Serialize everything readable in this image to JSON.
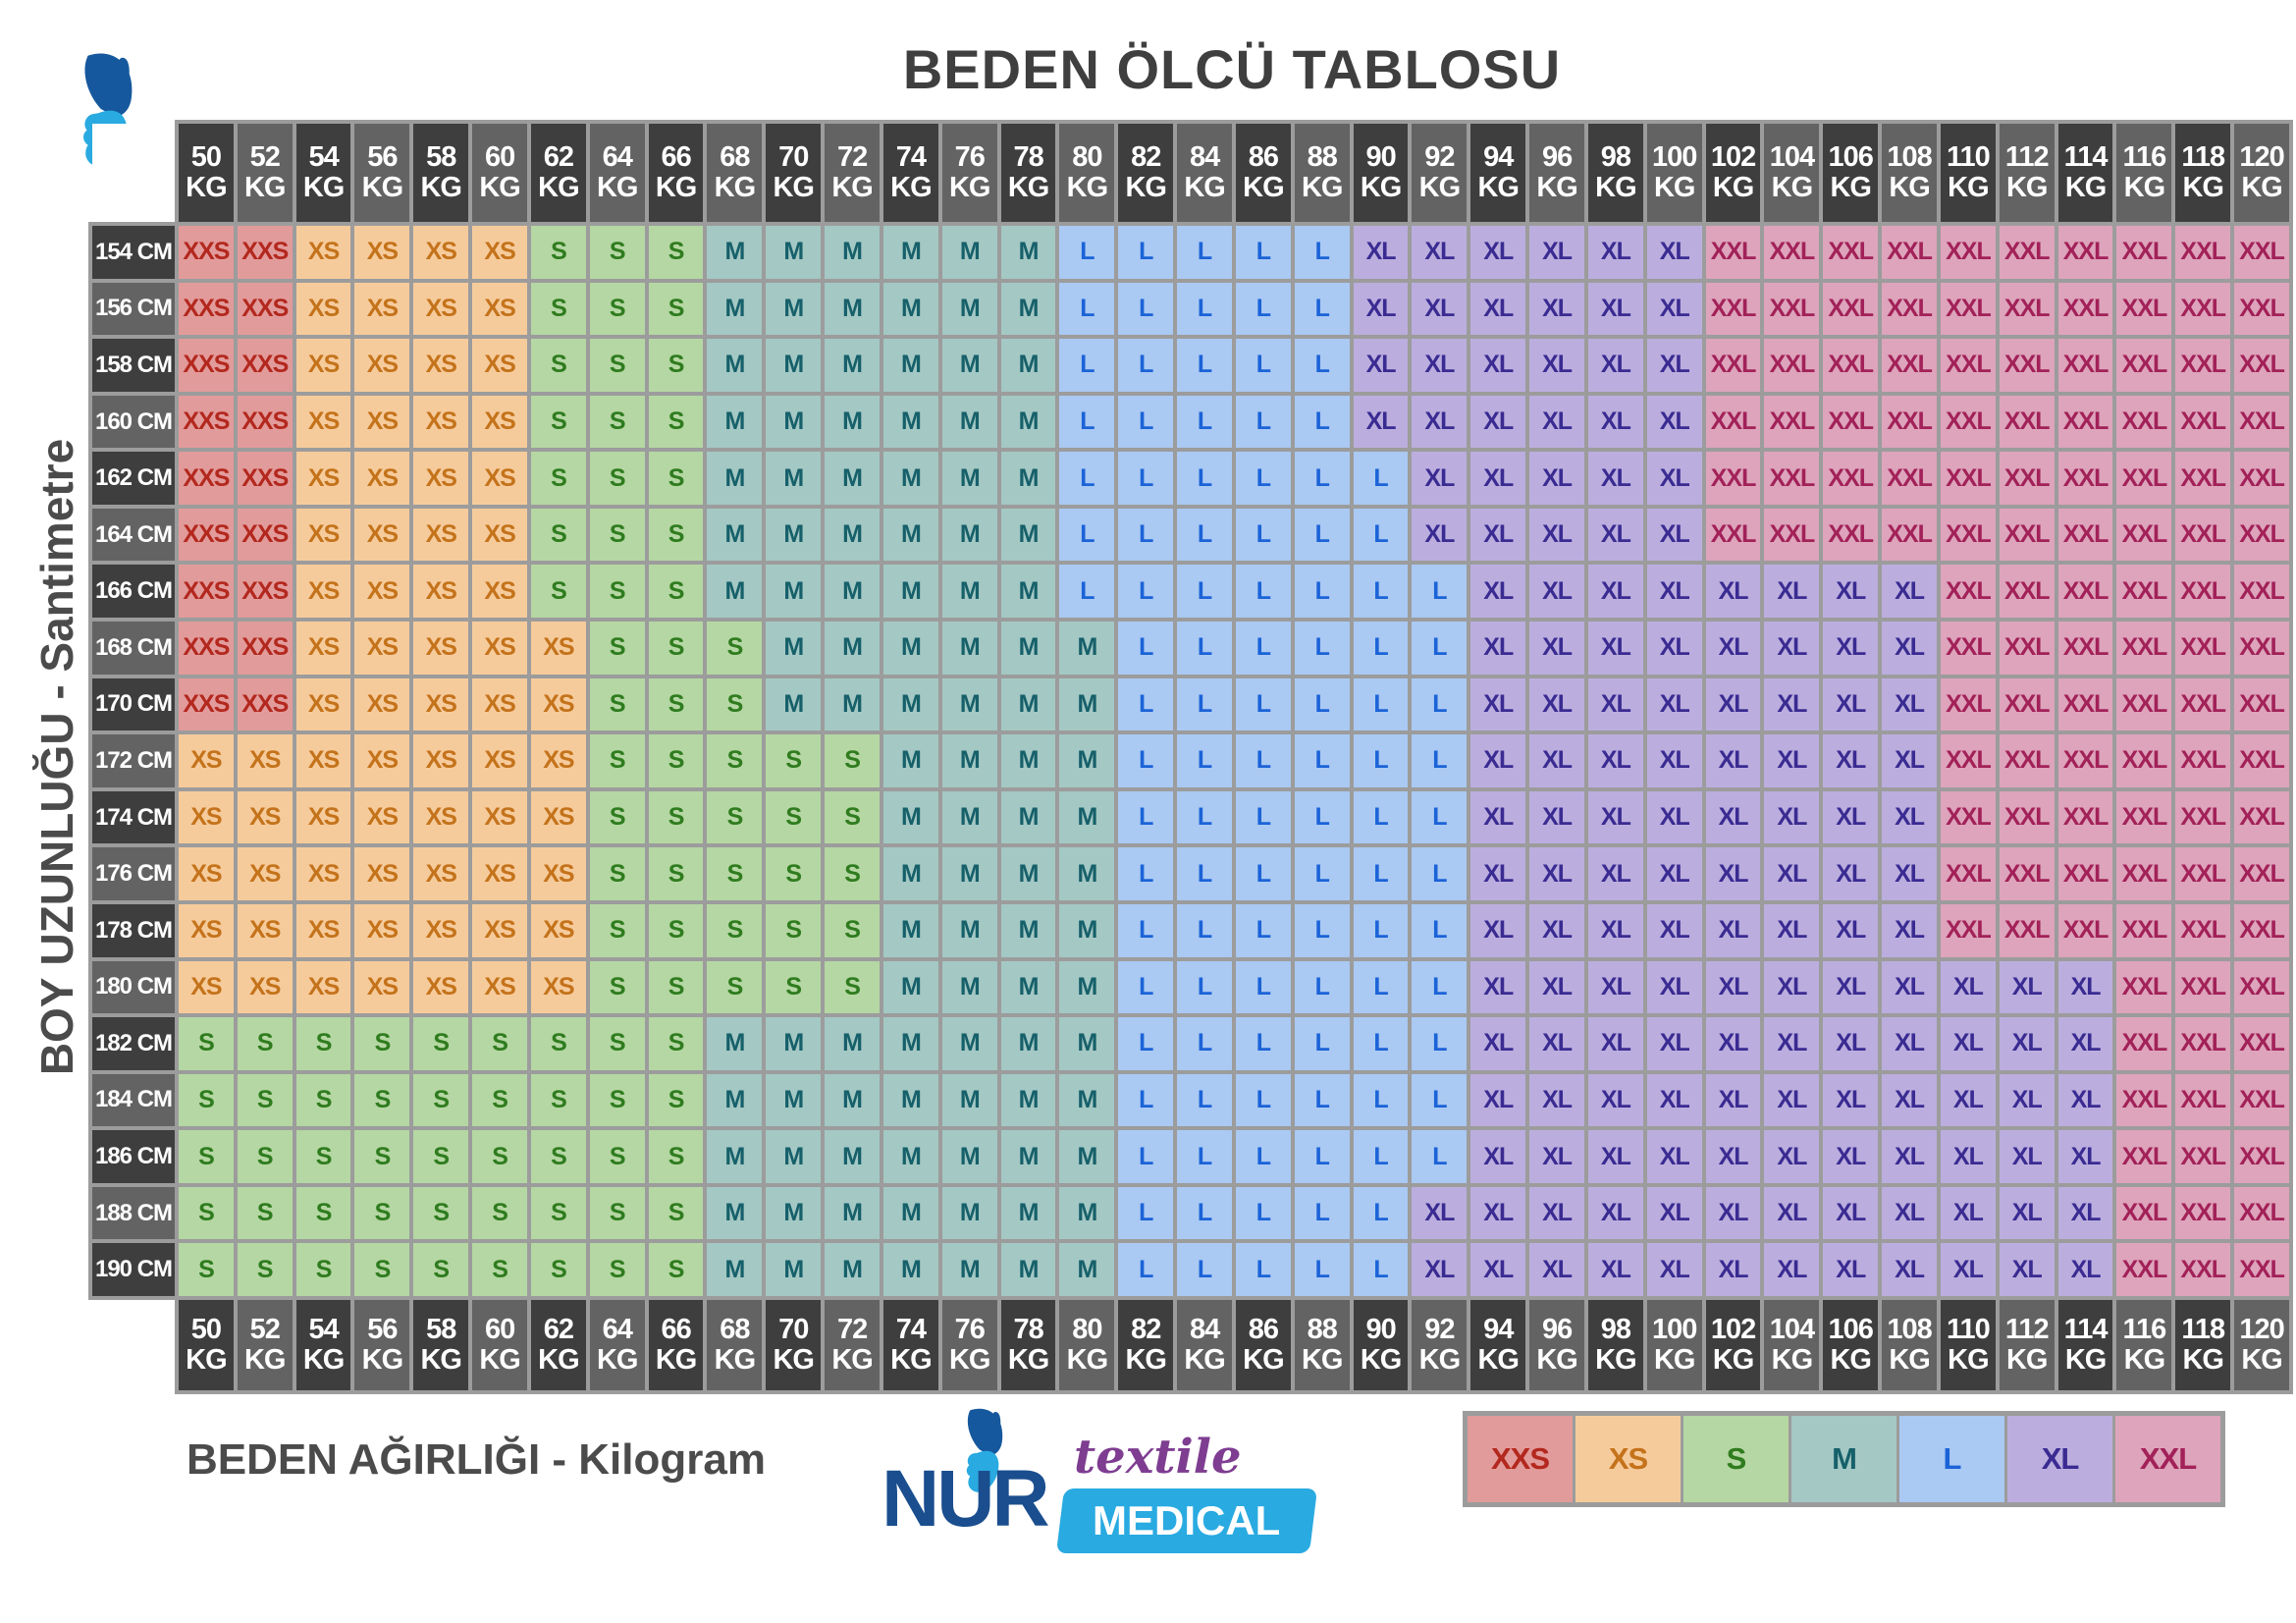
{
  "chart_data": {
    "type": "table",
    "title": "BEDEN ÖLCÜ TABLOSU",
    "x_axis": {
      "label": "BEDEN AĞIRLIĞI - Kilogram",
      "unit": "KG",
      "values": [
        "50",
        "52",
        "54",
        "56",
        "58",
        "60",
        "62",
        "64",
        "66",
        "68",
        "70",
        "72",
        "74",
        "76",
        "78",
        "80",
        "82",
        "84",
        "86",
        "88",
        "90",
        "92",
        "94",
        "96",
        "98",
        "100",
        "102",
        "104",
        "106",
        "108",
        "110",
        "112",
        "114",
        "116",
        "118",
        "120"
      ]
    },
    "y_axis": {
      "label": "BOY UZUNLUĞU - Santimetre",
      "unit": "CM",
      "values": [
        "154",
        "156",
        "158",
        "160",
        "162",
        "164",
        "166",
        "168",
        "170",
        "172",
        "174",
        "176",
        "178",
        "180",
        "182",
        "184",
        "186",
        "188",
        "190"
      ]
    },
    "legend": [
      "XXS",
      "XS",
      "S",
      "M",
      "L",
      "XL",
      "XXL"
    ],
    "rows": [
      {
        "height": "154",
        "runs": [
          [
            "XXS",
            2
          ],
          [
            "XS",
            4
          ],
          [
            "S",
            3
          ],
          [
            "M",
            6
          ],
          [
            "L",
            5
          ],
          [
            "XL",
            6
          ],
          [
            "XXL",
            10
          ]
        ]
      },
      {
        "height": "156",
        "runs": [
          [
            "XXS",
            2
          ],
          [
            "XS",
            4
          ],
          [
            "S",
            3
          ],
          [
            "M",
            6
          ],
          [
            "L",
            5
          ],
          [
            "XL",
            6
          ],
          [
            "XXL",
            10
          ]
        ]
      },
      {
        "height": "158",
        "runs": [
          [
            "XXS",
            2
          ],
          [
            "XS",
            4
          ],
          [
            "S",
            3
          ],
          [
            "M",
            6
          ],
          [
            "L",
            5
          ],
          [
            "XL",
            6
          ],
          [
            "XXL",
            10
          ]
        ]
      },
      {
        "height": "160",
        "runs": [
          [
            "XXS",
            2
          ],
          [
            "XS",
            4
          ],
          [
            "S",
            3
          ],
          [
            "M",
            6
          ],
          [
            "L",
            5
          ],
          [
            "XL",
            6
          ],
          [
            "XXL",
            10
          ]
        ]
      },
      {
        "height": "162",
        "runs": [
          [
            "XXS",
            2
          ],
          [
            "XS",
            4
          ],
          [
            "S",
            3
          ],
          [
            "M",
            6
          ],
          [
            "L",
            6
          ],
          [
            "XL",
            5
          ],
          [
            "XXL",
            10
          ]
        ]
      },
      {
        "height": "164",
        "runs": [
          [
            "XXS",
            2
          ],
          [
            "XS",
            4
          ],
          [
            "S",
            3
          ],
          [
            "M",
            6
          ],
          [
            "L",
            6
          ],
          [
            "XL",
            5
          ],
          [
            "XXL",
            10
          ]
        ]
      },
      {
        "height": "166",
        "runs": [
          [
            "XXS",
            2
          ],
          [
            "XS",
            4
          ],
          [
            "S",
            3
          ],
          [
            "M",
            6
          ],
          [
            "L",
            7
          ],
          [
            "XL",
            8
          ],
          [
            "XXL",
            6
          ]
        ]
      },
      {
        "height": "168",
        "runs": [
          [
            "XXS",
            2
          ],
          [
            "XS",
            5
          ],
          [
            "S",
            3
          ],
          [
            "M",
            6
          ],
          [
            "L",
            6
          ],
          [
            "XL",
            8
          ],
          [
            "XXL",
            6
          ]
        ]
      },
      {
        "height": "170",
        "runs": [
          [
            "XXS",
            2
          ],
          [
            "XS",
            5
          ],
          [
            "S",
            3
          ],
          [
            "M",
            6
          ],
          [
            "L",
            6
          ],
          [
            "XL",
            8
          ],
          [
            "XXL",
            6
          ]
        ]
      },
      {
        "height": "172",
        "runs": [
          [
            "XS",
            7
          ],
          [
            "S",
            5
          ],
          [
            "M",
            4
          ],
          [
            "L",
            6
          ],
          [
            "XL",
            8
          ],
          [
            "XXL",
            6
          ]
        ]
      },
      {
        "height": "174",
        "runs": [
          [
            "XS",
            7
          ],
          [
            "S",
            5
          ],
          [
            "M",
            4
          ],
          [
            "L",
            6
          ],
          [
            "XL",
            8
          ],
          [
            "XXL",
            6
          ]
        ]
      },
      {
        "height": "176",
        "runs": [
          [
            "XS",
            7
          ],
          [
            "S",
            5
          ],
          [
            "M",
            4
          ],
          [
            "L",
            6
          ],
          [
            "XL",
            8
          ],
          [
            "XXL",
            6
          ]
        ]
      },
      {
        "height": "178",
        "runs": [
          [
            "XS",
            7
          ],
          [
            "S",
            5
          ],
          [
            "M",
            4
          ],
          [
            "L",
            6
          ],
          [
            "XL",
            8
          ],
          [
            "XXL",
            6
          ]
        ]
      },
      {
        "height": "180",
        "runs": [
          [
            "XS",
            7
          ],
          [
            "S",
            5
          ],
          [
            "M",
            4
          ],
          [
            "L",
            6
          ],
          [
            "XL",
            11
          ],
          [
            "XXL",
            3
          ]
        ]
      },
      {
        "height": "182",
        "runs": [
          [
            "S",
            9
          ],
          [
            "M",
            7
          ],
          [
            "L",
            6
          ],
          [
            "XL",
            11
          ],
          [
            "XXL",
            3
          ]
        ]
      },
      {
        "height": "184",
        "runs": [
          [
            "S",
            9
          ],
          [
            "M",
            7
          ],
          [
            "L",
            6
          ],
          [
            "XL",
            11
          ],
          [
            "XXL",
            3
          ]
        ]
      },
      {
        "height": "186",
        "runs": [
          [
            "S",
            9
          ],
          [
            "M",
            7
          ],
          [
            "L",
            6
          ],
          [
            "XL",
            11
          ],
          [
            "XXL",
            3
          ]
        ]
      },
      {
        "height": "188",
        "runs": [
          [
            "S",
            9
          ],
          [
            "M",
            7
          ],
          [
            "L",
            5
          ],
          [
            "XL",
            12
          ],
          [
            "XXL",
            3
          ]
        ]
      },
      {
        "height": "190",
        "runs": [
          [
            "S",
            9
          ],
          [
            "M",
            7
          ],
          [
            "L",
            5
          ],
          [
            "XL",
            12
          ],
          [
            "XXL",
            3
          ]
        ]
      }
    ]
  },
  "logo": {
    "brand": "NUR",
    "textile": "textile",
    "medical": "MEDICAL"
  },
  "colors": {
    "sizes": {
      "XXS": {
        "bg": "#e29b9b",
        "fg": "#b3281e"
      },
      "XS": {
        "bg": "#f6cb9c",
        "fg": "#c4731b"
      },
      "S": {
        "bg": "#b5d7a3",
        "fg": "#2f7c1f"
      },
      "M": {
        "bg": "#a4c8c4",
        "fg": "#16606a"
      },
      "L": {
        "bg": "#aac9f3",
        "fg": "#1b63d7"
      },
      "XL": {
        "bg": "#bbaede",
        "fg": "#3a2b92"
      },
      "XXL": {
        "bg": "#dda4bb",
        "fg": "#a22158"
      }
    },
    "header_dark": "#3e3e3e",
    "header_light": "#636363",
    "header_text": "#ffffff",
    "grid": "#9c9c9c",
    "title": "#3f3f3f",
    "axis_label": "#4b4b4b",
    "logo_navy": "#1a4e8e",
    "logo_blue": "#29aae1",
    "logo_purple": "#7e3d91"
  }
}
